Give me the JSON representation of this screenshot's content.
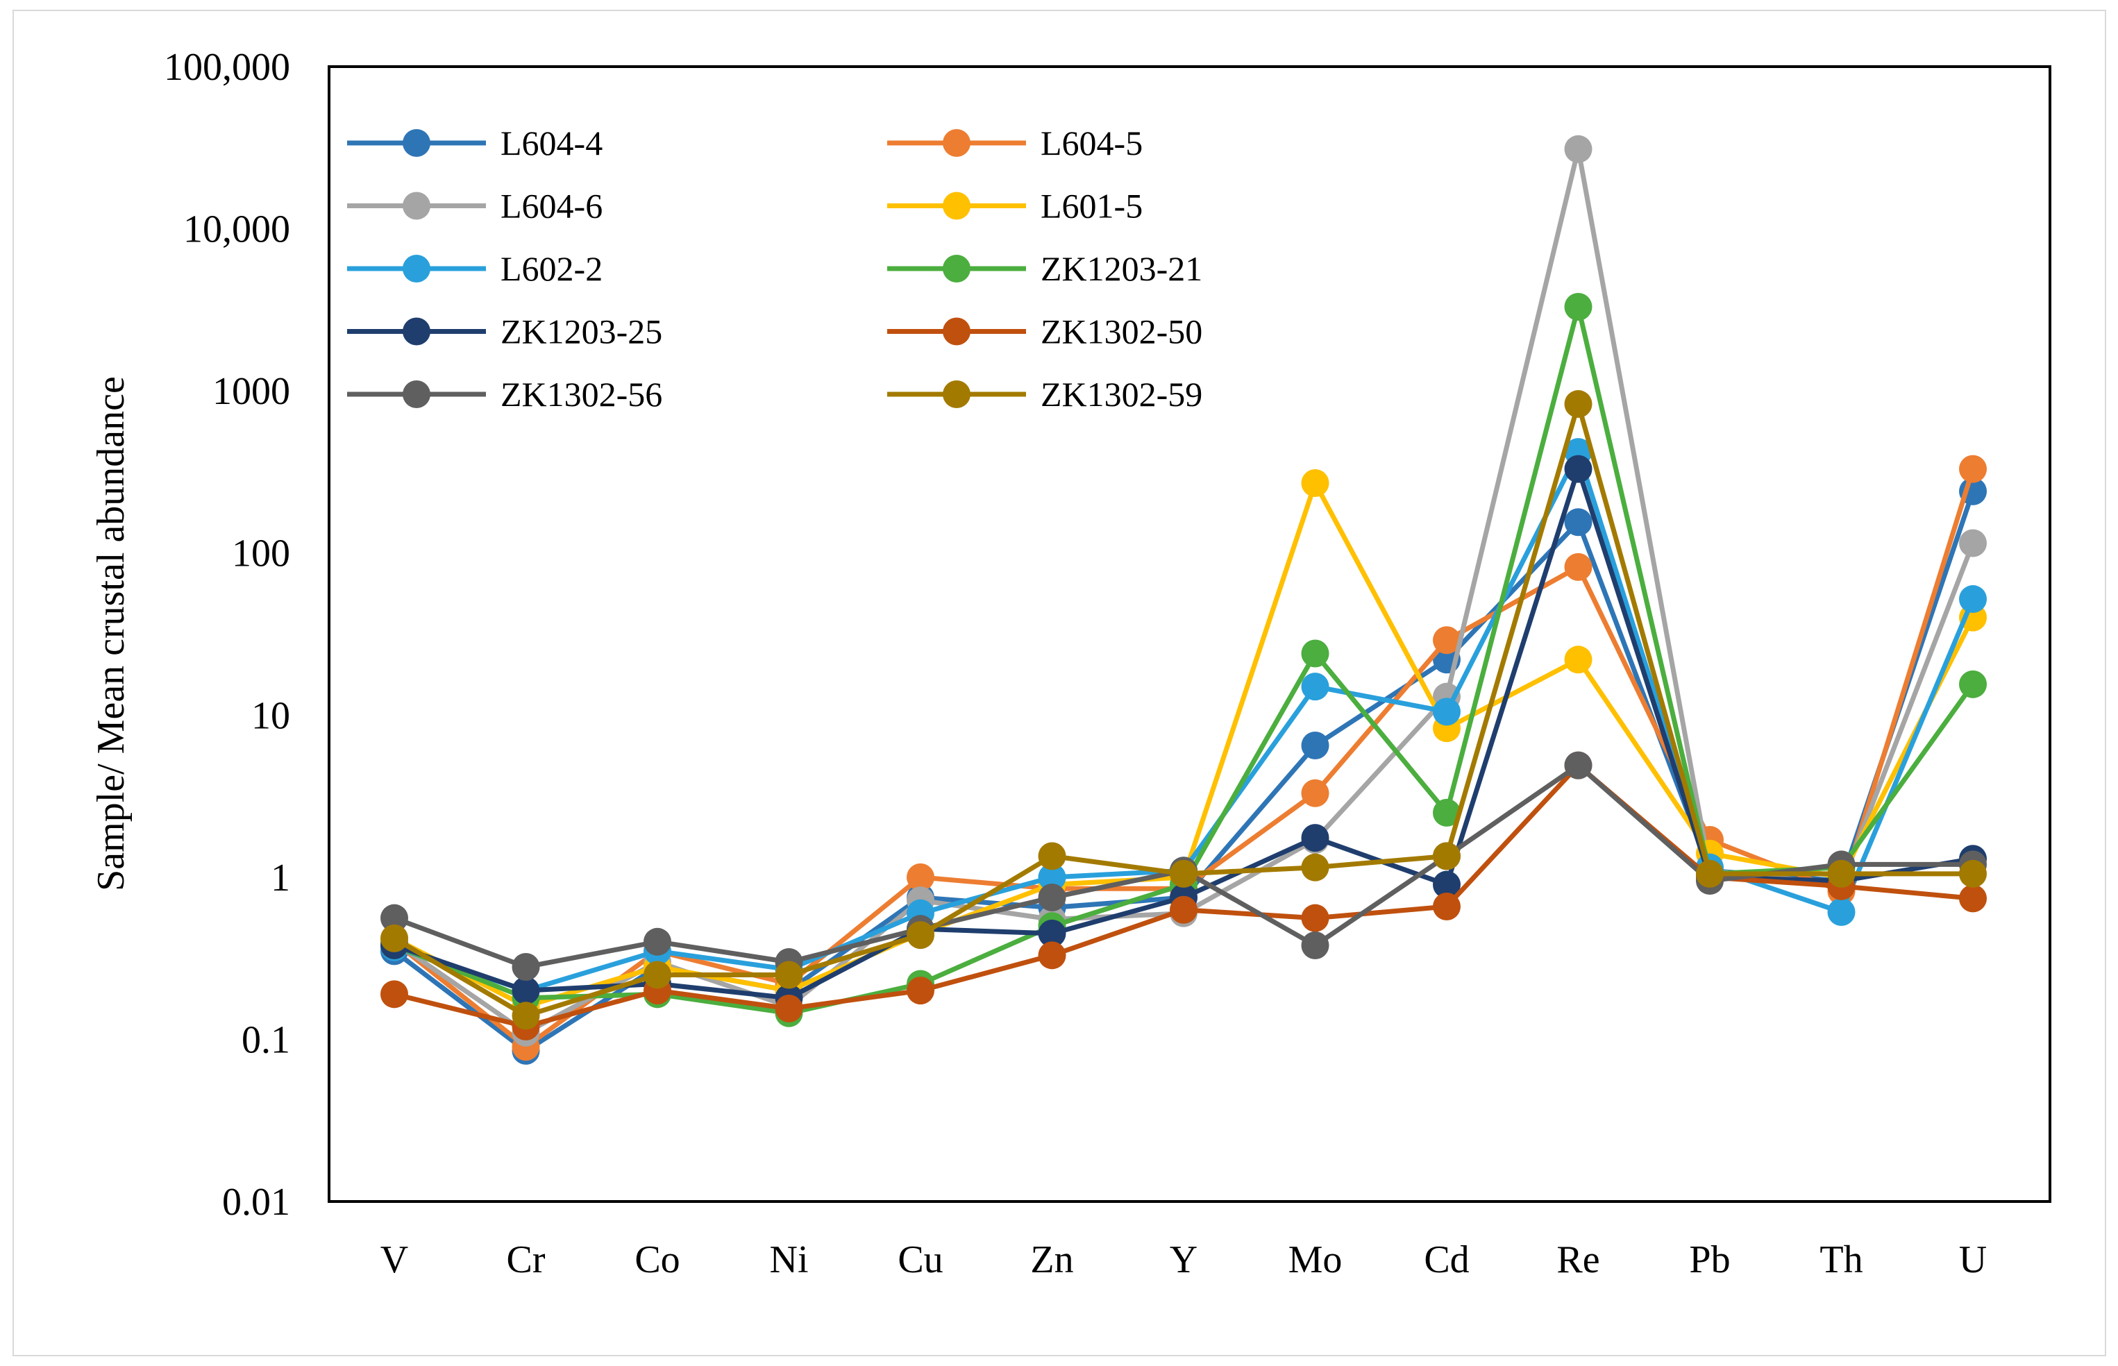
{
  "chart_data": {
    "type": "line",
    "title": "",
    "xlabel": "",
    "ylabel": "Sample/ Mean crustal abundance",
    "yscale": "log",
    "ylim": [
      0.01,
      100000
    ],
    "ytick_values": [
      0.01,
      0.1,
      1,
      10,
      100,
      1000,
      10000,
      100000
    ],
    "ytick_labels": [
      "0.01",
      "0.1",
      "1",
      "10",
      "100",
      "1000",
      "10,000",
      "100,000"
    ],
    "categories": [
      "V",
      "Cr",
      "Co",
      "Ni",
      "Cu",
      "Zn",
      "Y",
      "Mo",
      "Cd",
      "Re",
      "Pb",
      "Th",
      "U"
    ],
    "grid": false,
    "legend_position": "top-left",
    "series": [
      {
        "name": "L604-4",
        "color": "#2E75B6",
        "values": [
          0.35,
          0.085,
          0.28,
          0.2,
          0.75,
          0.65,
          0.75,
          6.5,
          22,
          155,
          1.1,
          0.95,
          240
        ]
      },
      {
        "name": "L604-5",
        "color": "#ED7D31",
        "values": [
          0.4,
          0.09,
          0.35,
          0.22,
          1.0,
          0.85,
          0.85,
          3.3,
          29,
          82,
          1.7,
          0.82,
          330
        ]
      },
      {
        "name": "L604-6",
        "color": "#A5A5A5",
        "values": [
          0.4,
          0.11,
          0.3,
          0.16,
          0.72,
          0.55,
          0.6,
          1.7,
          13,
          31000,
          1.1,
          0.9,
          115
        ]
      },
      {
        "name": "L601-5",
        "color": "#FFC000",
        "values": [
          0.42,
          0.16,
          0.28,
          0.2,
          0.45,
          0.9,
          1.0,
          270,
          8.3,
          22,
          1.4,
          1.0,
          40
        ]
      },
      {
        "name": "L602-2",
        "color": "#29A0DC",
        "values": [
          0.37,
          0.2,
          0.35,
          0.27,
          0.6,
          1.0,
          1.1,
          15,
          10.5,
          420,
          1.15,
          0.61,
          52
        ]
      },
      {
        "name": "ZK1203-21",
        "color": "#4BAE3E",
        "values": [
          0.38,
          0.18,
          0.19,
          0.145,
          0.22,
          0.5,
          0.9,
          24,
          2.5,
          3300,
          1.05,
          1.15,
          15.5
        ]
      },
      {
        "name": "ZK1203-25",
        "color": "#1F3E6E",
        "values": [
          0.38,
          0.2,
          0.22,
          0.18,
          0.48,
          0.45,
          0.75,
          1.75,
          0.9,
          330,
          1.0,
          0.95,
          1.3
        ]
      },
      {
        "name": "ZK1302-50",
        "color": "#C0500E",
        "values": [
          0.19,
          0.12,
          0.2,
          0.155,
          0.2,
          0.33,
          0.63,
          0.56,
          0.66,
          4.9,
          1.0,
          0.88,
          0.74
        ]
      },
      {
        "name": "ZK1302-56",
        "color": "#5F5F5F",
        "values": [
          0.56,
          0.28,
          0.4,
          0.3,
          0.48,
          0.75,
          1.1,
          0.38,
          1.35,
          4.9,
          0.95,
          1.2,
          1.2
        ]
      },
      {
        "name": "ZK1302-59",
        "color": "#A37A00",
        "values": [
          0.42,
          0.14,
          0.25,
          0.25,
          0.44,
          1.35,
          1.05,
          1.15,
          1.35,
          830,
          1.05,
          1.05,
          1.05
        ]
      }
    ]
  }
}
